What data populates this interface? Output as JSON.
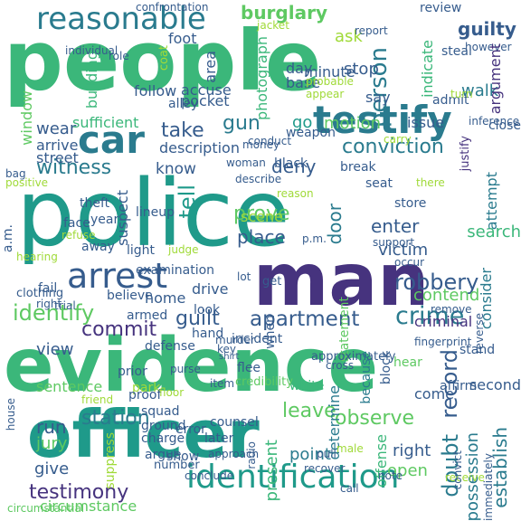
{
  "wordcloud": {
    "palette": {
      "dark_purple": "#46337e",
      "indigo": "#365c8d",
      "blue": "#2a7b8e",
      "teal": "#1f9a8a",
      "green": "#3bb77a",
      "light_green": "#5ec962",
      "yellow_green": "#a0da39",
      "yellow": "#e5e419"
    },
    "words": [
      {
        "text": "people",
        "color": "#3bb77a"
      },
      {
        "text": "police",
        "color": "#1f9a8a"
      },
      {
        "text": "evidence",
        "color": "#3bb77a"
      },
      {
        "text": "man",
        "color": "#46337e"
      },
      {
        "text": "officer",
        "color": "#1f9a8a"
      },
      {
        "text": "identification",
        "color": "#1f9a8a"
      },
      {
        "text": "testify",
        "color": "#2a7b8e"
      },
      {
        "text": "reasonable",
        "color": "#2a7b8e"
      },
      {
        "text": "car",
        "color": "#2a7b8e"
      },
      {
        "text": "arrest",
        "color": "#365c8d"
      },
      {
        "text": "identify",
        "color": "#5ec962"
      },
      {
        "text": "crime",
        "color": "#2a7b8e"
      },
      {
        "text": "testimony",
        "color": "#46337e"
      },
      {
        "text": "apartment",
        "color": "#365c8d"
      },
      {
        "text": "robbery",
        "color": "#365c8d"
      },
      {
        "text": "burglary",
        "color": "#5ec962"
      },
      {
        "text": "guilty",
        "color": "#365c8d"
      },
      {
        "text": "person",
        "color": "#2a7b8e"
      },
      {
        "text": "witness",
        "color": "#2a7b8e"
      },
      {
        "text": "take",
        "color": "#365c8d"
      },
      {
        "text": "gun",
        "color": "#2a7b8e"
      },
      {
        "text": "tell",
        "color": "#1f9a8a"
      },
      {
        "text": "door",
        "color": "#2a7b8e"
      },
      {
        "text": "conviction",
        "color": "#2a7b8e"
      },
      {
        "text": "record",
        "color": "#365c8d"
      },
      {
        "text": "doubt",
        "color": "#2a7b8e"
      },
      {
        "text": "establish",
        "color": "#2a7b8e"
      },
      {
        "text": "commit",
        "color": "#46337e"
      },
      {
        "text": "guilt",
        "color": "#365c8d"
      },
      {
        "text": "station",
        "color": "#2a7b8e"
      },
      {
        "text": "circumstance",
        "color": "#5ec962"
      },
      {
        "text": "leave",
        "color": "#5ec962"
      },
      {
        "text": "observe",
        "color": "#5ec962"
      },
      {
        "text": "prove",
        "color": "#5ec962"
      },
      {
        "text": "place",
        "color": "#365c8d"
      },
      {
        "text": "scene",
        "color": "#a0da39"
      },
      {
        "text": "deny",
        "color": "#365c8d"
      },
      {
        "text": "enter",
        "color": "#365c8d"
      },
      {
        "text": "victim",
        "color": "#365c8d"
      },
      {
        "text": "contend",
        "color": "#5ec962"
      },
      {
        "text": "motion",
        "color": "#5ec962"
      },
      {
        "text": "go",
        "color": "#1f9a8a"
      },
      {
        "text": "know",
        "color": "#365c8d"
      },
      {
        "text": "walk",
        "color": "#2a7b8e"
      },
      {
        "text": "stop",
        "color": "#365c8d"
      },
      {
        "text": "ask",
        "color": "#a0da39"
      },
      {
        "text": "wear",
        "color": "#365c8d"
      },
      {
        "text": "run",
        "color": "#365c8d"
      },
      {
        "text": "jury",
        "color": "#5ec962"
      },
      {
        "text": "give",
        "color": "#365c8d"
      },
      {
        "text": "view",
        "color": "#365c8d"
      },
      {
        "text": "present",
        "color": "#3bb77a"
      },
      {
        "text": "point",
        "color": "#2a7b8e"
      },
      {
        "text": "right",
        "color": "#365c8d"
      },
      {
        "text": "open",
        "color": "#5ec962"
      },
      {
        "text": "possession",
        "color": "#2a7b8e"
      },
      {
        "text": "offense",
        "color": "#3bb77a"
      },
      {
        "text": "say",
        "color": "#365c8d"
      },
      {
        "text": "search",
        "color": "#3bb77a"
      },
      {
        "text": "issue",
        "color": "#365c8d"
      },
      {
        "text": "description",
        "color": "#365c8d"
      },
      {
        "text": "sufficient",
        "color": "#3bb77a"
      },
      {
        "text": "building",
        "color": "#3bb77a"
      },
      {
        "text": "follow",
        "color": "#365c8d"
      },
      {
        "text": "arrive",
        "color": "#365c8d"
      },
      {
        "text": "street",
        "color": "#365c8d"
      },
      {
        "text": "window",
        "color": "#5ec962"
      },
      {
        "text": "minute",
        "color": "#365c8d"
      },
      {
        "text": "day",
        "color": "#365c8d"
      },
      {
        "text": "base",
        "color": "#365c8d"
      },
      {
        "text": "photograph",
        "color": "#3bb77a"
      },
      {
        "text": "accuse",
        "color": "#365c8d"
      },
      {
        "text": "pocket",
        "color": "#365c8d"
      },
      {
        "text": "area",
        "color": "#365c8d"
      },
      {
        "text": "coat",
        "color": "#a0da39"
      },
      {
        "text": "foot",
        "color": "#365c8d"
      },
      {
        "text": "jacket",
        "color": "#a0da39"
      },
      {
        "text": "report",
        "color": "#365c8d"
      },
      {
        "text": "review",
        "color": "#365c8d"
      },
      {
        "text": "indicate",
        "color": "#3bb77a"
      },
      {
        "text": "steal",
        "color": "#365c8d"
      },
      {
        "text": "however",
        "color": "#365c8d"
      },
      {
        "text": "argument",
        "color": "#46337e"
      },
      {
        "text": "admit",
        "color": "#365c8d"
      },
      {
        "text": "turn",
        "color": "#a0da39"
      },
      {
        "text": "probable",
        "color": "#a0da39"
      },
      {
        "text": "appear",
        "color": "#a0da39"
      },
      {
        "text": "inference",
        "color": "#365c8d"
      },
      {
        "text": "close",
        "color": "#365c8d"
      },
      {
        "text": "justify",
        "color": "#46337e"
      },
      {
        "text": "carry",
        "color": "#a0da39"
      },
      {
        "text": "break",
        "color": "#365c8d"
      },
      {
        "text": "seat",
        "color": "#365c8d"
      },
      {
        "text": "there",
        "color": "#a0da39"
      },
      {
        "text": "attempt",
        "color": "#2a7b8e"
      },
      {
        "text": "store",
        "color": "#365c8d"
      },
      {
        "text": "support",
        "color": "#365c8d"
      },
      {
        "text": "occur",
        "color": "#365c8d"
      },
      {
        "text": "criminal",
        "color": "#46337e"
      },
      {
        "text": "remove",
        "color": "#365c8d"
      },
      {
        "text": "consider",
        "color": "#2a7b8e"
      },
      {
        "text": "reverse",
        "color": "#365c8d"
      },
      {
        "text": "fingerprint",
        "color": "#365c8d"
      },
      {
        "text": "stand",
        "color": "#365c8d"
      },
      {
        "text": "statement",
        "color": "#5ec962"
      },
      {
        "text": "approximately",
        "color": "#365c8d"
      },
      {
        "text": "cross",
        "color": "#365c8d"
      },
      {
        "text": "determine",
        "color": "#2a7b8e"
      },
      {
        "text": "because",
        "color": "#2a7b8e"
      },
      {
        "text": "block",
        "color": "#365c8d"
      },
      {
        "text": "hear",
        "color": "#5ec962"
      },
      {
        "text": "affirm",
        "color": "#365c8d"
      },
      {
        "text": "come",
        "color": "#365c8d"
      },
      {
        "text": "second",
        "color": "#365c8d"
      },
      {
        "text": "white",
        "color": "#3bb77a"
      },
      {
        "text": "when",
        "color": "#365c8d"
      },
      {
        "text": "credibility",
        "color": "#5ec962"
      },
      {
        "text": "flee",
        "color": "#365c8d"
      },
      {
        "text": "item",
        "color": "#365c8d"
      },
      {
        "text": "murder",
        "color": "#365c8d"
      },
      {
        "text": "shirt",
        "color": "#365c8d"
      },
      {
        "text": "key",
        "color": "#365c8d"
      },
      {
        "text": "incident",
        "color": "#365c8d"
      },
      {
        "text": "hand",
        "color": "#365c8d"
      },
      {
        "text": "drive",
        "color": "#365c8d"
      },
      {
        "text": "look",
        "color": "#365c8d"
      },
      {
        "text": "get",
        "color": "#365c8d"
      },
      {
        "text": "lot",
        "color": "#365c8d"
      },
      {
        "text": "home",
        "color": "#365c8d"
      },
      {
        "text": "believe",
        "color": "#365c8d"
      },
      {
        "text": "armed",
        "color": "#365c8d"
      },
      {
        "text": "defense",
        "color": "#365c8d"
      },
      {
        "text": "light",
        "color": "#365c8d"
      },
      {
        "text": "suspect",
        "color": "#365c8d"
      },
      {
        "text": "away",
        "color": "#365c8d"
      },
      {
        "text": "examination",
        "color": "#365c8d"
      },
      {
        "text": "lineup",
        "color": "#365c8d"
      },
      {
        "text": "judge",
        "color": "#a0da39"
      },
      {
        "text": "year",
        "color": "#365c8d"
      },
      {
        "text": "theft",
        "color": "#365c8d"
      },
      {
        "text": "face",
        "color": "#365c8d"
      },
      {
        "text": "refuse",
        "color": "#a0da39"
      },
      {
        "text": "hearing",
        "color": "#a0da39"
      },
      {
        "text": "a.m.",
        "color": "#365c8d"
      },
      {
        "text": "fail",
        "color": "#365c8d"
      },
      {
        "text": "right",
        "color": "#365c8d"
      },
      {
        "text": "clothing",
        "color": "#365c8d"
      },
      {
        "text": "trial",
        "color": "#365c8d"
      },
      {
        "text": "prior",
        "color": "#365c8d"
      },
      {
        "text": "park",
        "color": "#a0da39"
      },
      {
        "text": "purse",
        "color": "#365c8d"
      },
      {
        "text": "proof",
        "color": "#365c8d"
      },
      {
        "text": "squad",
        "color": "#365c8d"
      },
      {
        "text": "friend",
        "color": "#a0da39"
      },
      {
        "text": "floor",
        "color": "#a0da39"
      },
      {
        "text": "sentence",
        "color": "#5ec962"
      },
      {
        "text": "ground",
        "color": "#365c8d"
      },
      {
        "text": "error",
        "color": "#365c8d"
      },
      {
        "text": "charge",
        "color": "#365c8d"
      },
      {
        "text": "argue",
        "color": "#365c8d"
      },
      {
        "text": "show",
        "color": "#365c8d"
      },
      {
        "text": "later",
        "color": "#365c8d"
      },
      {
        "text": "counsel",
        "color": "#365c8d"
      },
      {
        "text": "approach",
        "color": "#365c8d"
      },
      {
        "text": "number",
        "color": "#365c8d"
      },
      {
        "text": "conclude",
        "color": "#365c8d"
      },
      {
        "text": "suppress",
        "color": "#a0da39"
      },
      {
        "text": "radio",
        "color": "#365c8d"
      },
      {
        "text": "recover",
        "color": "#365c8d"
      },
      {
        "text": "pull",
        "color": "#365c8d"
      },
      {
        "text": "male",
        "color": "#a0da39"
      },
      {
        "text": "note",
        "color": "#365c8d"
      },
      {
        "text": "receive",
        "color": "#a0da39"
      },
      {
        "text": "convict",
        "color": "#365c8d"
      },
      {
        "text": "immediately",
        "color": "#365c8d"
      },
      {
        "text": "circumstantial",
        "color": "#5ec962"
      },
      {
        "text": "call",
        "color": "#365c8d"
      },
      {
        "text": "house",
        "color": "#365c8d"
      },
      {
        "text": "black",
        "color": "#365c8d"
      },
      {
        "text": "weapon",
        "color": "#365c8d"
      },
      {
        "text": "conduct",
        "color": "#365c8d"
      },
      {
        "text": "describe",
        "color": "#365c8d"
      },
      {
        "text": "reason",
        "color": "#a0da39"
      },
      {
        "text": "p.m.",
        "color": "#365c8d"
      },
      {
        "text": "money",
        "color": "#365c8d"
      },
      {
        "text": "woman",
        "color": "#365c8d"
      },
      {
        "text": "alley",
        "color": "#365c8d"
      },
      {
        "text": "bag",
        "color": "#365c8d"
      },
      {
        "text": "positive",
        "color": "#a0da39"
      },
      {
        "text": "confrontation",
        "color": "#365c8d"
      },
      {
        "text": "individual",
        "color": "#365c8d"
      },
      {
        "text": "role",
        "color": "#365c8d"
      }
    ]
  }
}
